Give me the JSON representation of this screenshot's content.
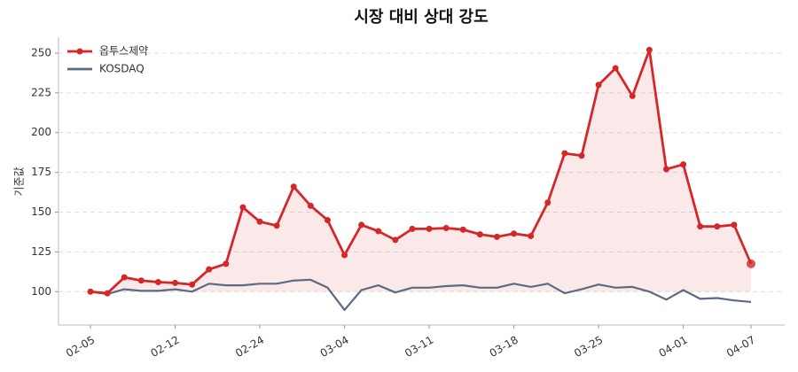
{
  "chart_data": {
    "type": "line",
    "title": "시장 대비 상대 강도",
    "y_label": "기준값",
    "categories": [
      "02-05",
      null,
      null,
      null,
      null,
      "02-12",
      null,
      null,
      null,
      null,
      "02-24",
      null,
      null,
      null,
      null,
      "03-04",
      null,
      null,
      null,
      null,
      "03-11",
      null,
      null,
      null,
      null,
      "03-18",
      null,
      null,
      null,
      null,
      "03-25",
      null,
      null,
      null,
      null,
      "04-01",
      null,
      null,
      null,
      "04-07"
    ],
    "series": [
      {
        "name": "옵투스제약",
        "color": "#d62728",
        "markers": true,
        "fill_baseline": 100,
        "values": [
          100,
          99,
          109,
          107,
          106,
          105.5,
          104.5,
          114,
          117.5,
          153,
          144,
          141.5,
          166,
          154,
          145,
          123,
          142,
          138,
          132.5,
          139.5,
          139.5,
          140,
          139,
          136,
          134.5,
          136.5,
          135,
          156,
          187,
          185.5,
          230,
          240.5,
          223,
          252,
          177,
          180,
          141,
          141,
          142,
          117.5
        ]
      },
      {
        "name": "KOSDAQ",
        "color": "#5b6b84",
        "markers": false,
        "values": [
          100,
          98.5,
          101.5,
          100.5,
          100.5,
          101.5,
          100,
          105,
          104,
          104,
          105,
          105,
          107,
          107.5,
          102.5,
          88.5,
          101,
          104,
          99.5,
          102.5,
          102.5,
          103.5,
          104,
          102.5,
          102.5,
          105,
          103,
          105,
          99,
          101.5,
          104.5,
          102.5,
          103,
          100,
          95,
          101,
          95.5,
          96,
          94.5,
          93.5
        ]
      }
    ],
    "ylim": [
      79,
      260
    ],
    "yticks": [
      100,
      125,
      150,
      175,
      200,
      225,
      250
    ],
    "grid": true,
    "legend": "upper left"
  }
}
